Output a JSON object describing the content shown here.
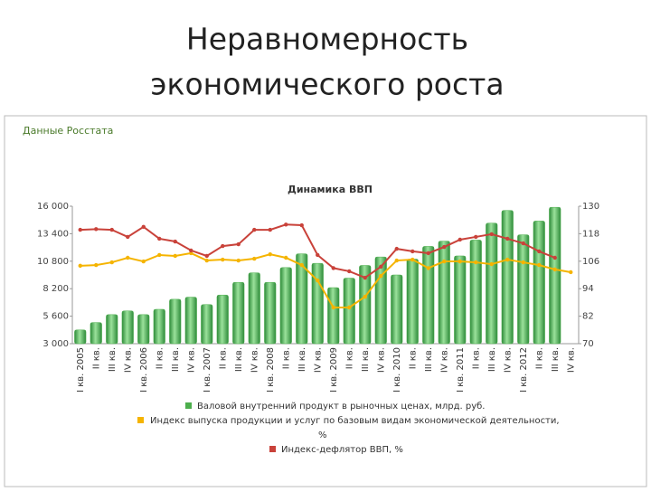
{
  "slide": {
    "title_lines": [
      "Неравномерность",
      "экономического роста"
    ],
    "source": "Данные Росстата"
  },
  "chart_data": {
    "type": "bar_line",
    "title": "Динамика ВВП",
    "categories": [
      "I кв. 2005",
      "II кв.",
      "III кв.",
      "IV кв.",
      "I кв. 2006",
      "II кв.",
      "III кв.",
      "IV кв.",
      "I кв. 2007",
      "II кв.",
      "III кв.",
      "IV кв.",
      "I кв. 2008",
      "II кв.",
      "III кв.",
      "IV кв.",
      "I кв. 2009",
      "II кв.",
      "III кв.",
      "IV кв.",
      "I кв. 2010",
      "II кв.",
      "III кв.",
      "IV кв.",
      "I кв. 2011",
      "II кв.",
      "III кв.",
      "IV кв.",
      "I кв. 2012",
      "II кв.",
      "III кв.",
      "IV кв."
    ],
    "series": [
      {
        "name": "Валовой внутренний продукт в рыночных ценах, млрд. руб.",
        "color": "#4cae4c",
        "kind": "bar",
        "axis": "y",
        "values": [
          4300,
          5000,
          5750,
          6100,
          5750,
          6250,
          7200,
          7400,
          6700,
          7600,
          8800,
          9700,
          8800,
          10200,
          11500,
          10600,
          8300,
          9200,
          10400,
          11200,
          9500,
          11000,
          12200,
          12700,
          11300,
          12800,
          14400,
          15600,
          13300,
          14600,
          15900,
          null
        ]
      },
      {
        "name": "Индекс выпуска продукции и услуг по базовым видам экономической деятельности, %",
        "color": "#f5b400",
        "kind": "line",
        "axis": "y2",
        "values": [
          104,
          104.3,
          105.5,
          107.5,
          105.9,
          108.7,
          108.3,
          109.5,
          106.3,
          106.7,
          106.3,
          107.1,
          109,
          107.5,
          104.3,
          97.6,
          85.8,
          85.8,
          90.5,
          99.6,
          106.3,
          106.7,
          103,
          105.9,
          105.9,
          105.5,
          104.7,
          106.7,
          105.5,
          104.3,
          102.4,
          101.2
        ]
      },
      {
        "name": "Индекс-дефлятор ВВП, %",
        "color": "#c9423a",
        "kind": "line",
        "axis": "y2",
        "values": [
          119.7,
          120,
          119.7,
          116.6,
          121,
          115.8,
          114.6,
          110.7,
          108.3,
          112.6,
          113.4,
          119.7,
          119.7,
          122,
          121.7,
          108.7,
          103,
          101.6,
          98.8,
          103.6,
          111.4,
          110.3,
          109.5,
          112.2,
          115.4,
          116.6,
          117.8,
          115.8,
          113.8,
          110.3,
          107.5,
          null
        ]
      }
    ],
    "ylim": [
      3000,
      16000
    ],
    "yticks": [
      {
        "value": 3000,
        "label": "3 000"
      },
      {
        "value": 5600,
        "label": "5 600"
      },
      {
        "value": 8200,
        "label": "8 200"
      },
      {
        "value": 10800,
        "label": "10 800"
      },
      {
        "value": 13400,
        "label": "13 400"
      },
      {
        "value": 16000,
        "label": "16 000"
      }
    ],
    "y2lim": [
      70,
      130
    ],
    "y2ticks": [
      70,
      82,
      94,
      106,
      118,
      130
    ],
    "grid": false
  }
}
